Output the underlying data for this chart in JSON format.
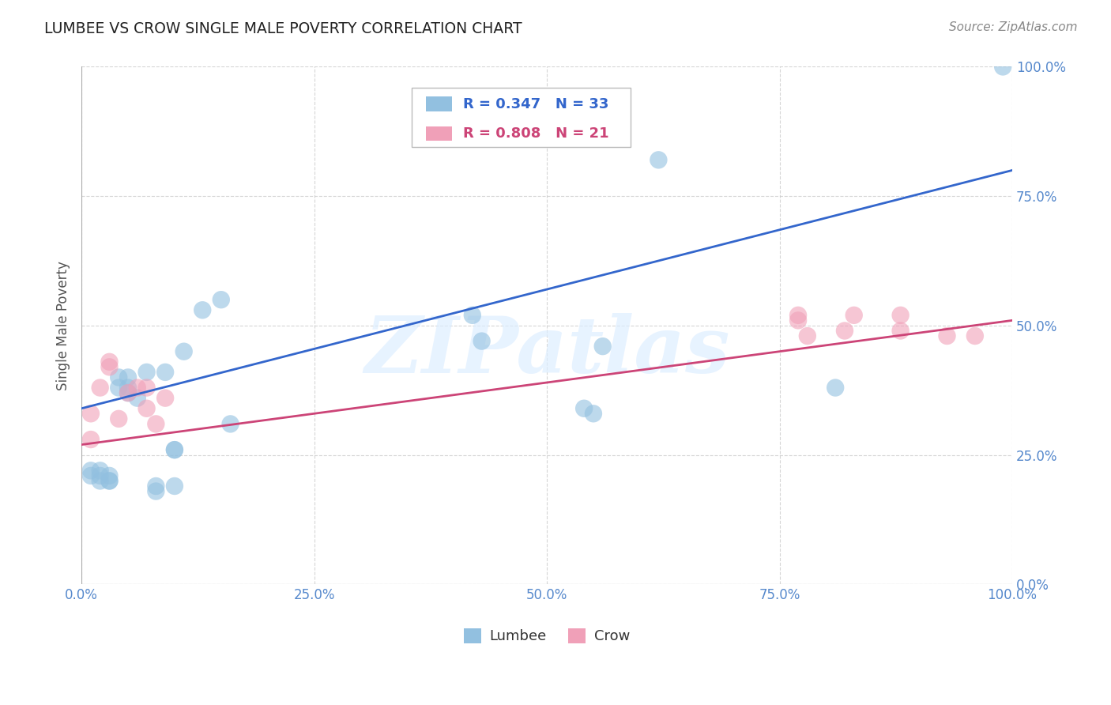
{
  "title": "LUMBEE VS CROW SINGLE MALE POVERTY CORRELATION CHART",
  "source": "Source: ZipAtlas.com",
  "ylabel": "Single Male Poverty",
  "lumbee_label": "Lumbee",
  "crow_label": "Crow",
  "lumbee_R": "R = 0.347",
  "lumbee_N": "N = 33",
  "crow_R": "R = 0.808",
  "crow_N": "N = 21",
  "lumbee_color": "#92c0e0",
  "crow_color": "#f0a0b8",
  "lumbee_line_color": "#3366cc",
  "crow_line_color": "#cc4477",
  "background_color": "#ffffff",
  "grid_color": "#cccccc",
  "watermark_text": "ZIPatlas",
  "tick_color": "#5588cc",
  "lumbee_x": [
    0.01,
    0.01,
    0.02,
    0.02,
    0.02,
    0.03,
    0.03,
    0.03,
    0.04,
    0.04,
    0.05,
    0.05,
    0.05,
    0.06,
    0.07,
    0.08,
    0.08,
    0.09,
    0.1,
    0.1,
    0.1,
    0.11,
    0.13,
    0.15,
    0.16,
    0.42,
    0.43,
    0.54,
    0.55,
    0.56,
    0.62,
    0.81,
    0.99
  ],
  "lumbee_y": [
    0.21,
    0.22,
    0.2,
    0.21,
    0.22,
    0.2,
    0.21,
    0.2,
    0.38,
    0.4,
    0.37,
    0.38,
    0.4,
    0.36,
    0.41,
    0.18,
    0.19,
    0.41,
    0.19,
    0.26,
    0.26,
    0.45,
    0.53,
    0.55,
    0.31,
    0.52,
    0.47,
    0.34,
    0.33,
    0.46,
    0.82,
    0.38,
    1.0
  ],
  "crow_x": [
    0.01,
    0.01,
    0.02,
    0.03,
    0.03,
    0.04,
    0.05,
    0.06,
    0.07,
    0.07,
    0.08,
    0.09,
    0.77,
    0.77,
    0.78,
    0.82,
    0.83,
    0.88,
    0.88,
    0.93,
    0.96
  ],
  "crow_y": [
    0.28,
    0.33,
    0.38,
    0.42,
    0.43,
    0.32,
    0.37,
    0.38,
    0.34,
    0.38,
    0.31,
    0.36,
    0.51,
    0.52,
    0.48,
    0.49,
    0.52,
    0.52,
    0.49,
    0.48,
    0.48
  ],
  "lumbee_intercept": 0.34,
  "lumbee_slope": 0.46,
  "crow_intercept": 0.27,
  "crow_slope": 0.24,
  "xlim": [
    0.0,
    1.0
  ],
  "ylim": [
    0.0,
    1.0
  ],
  "tick_vals": [
    0.0,
    0.25,
    0.5,
    0.75,
    1.0
  ],
  "tick_labels": [
    "0.0%",
    "25.0%",
    "50.0%",
    "75.0%",
    "100.0%"
  ]
}
